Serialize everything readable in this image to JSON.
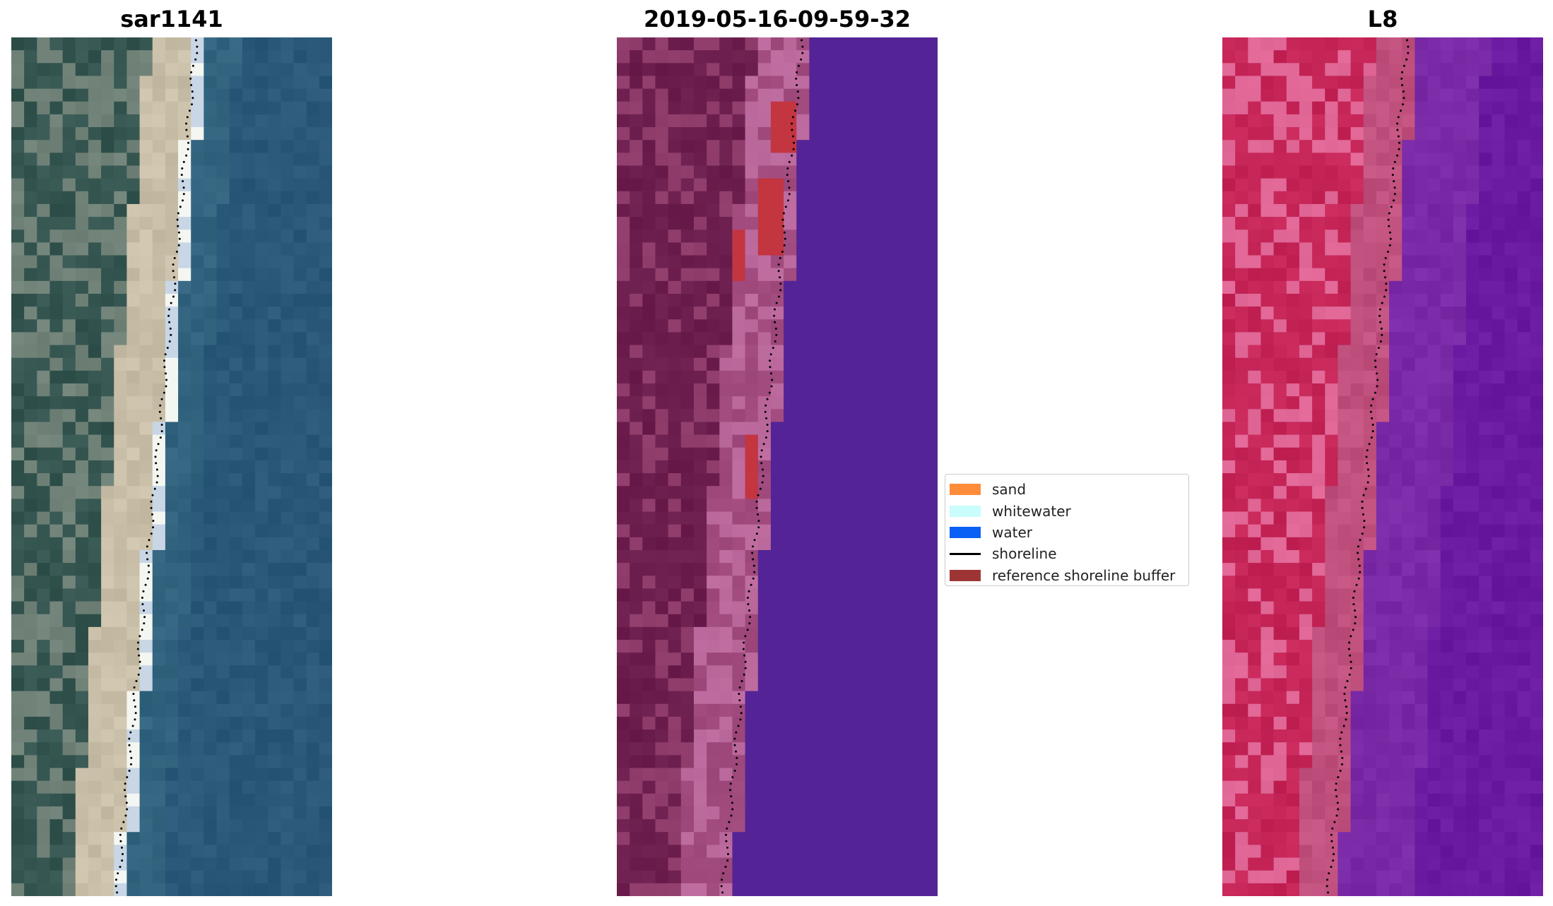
{
  "panels": [
    {
      "title": "sar1141",
      "kind": "rgb",
      "colors": {
        "inland": "#3a5a55",
        "inland_light": "#687a70",
        "sand": "#c9bfa8",
        "wet": "#c8d6e6",
        "white": "#f4f6f2",
        "water": "#2a5878",
        "water_light": "#33647f"
      }
    },
    {
      "title": "2019-05-16-09-59-32",
      "kind": "classified",
      "colors": {
        "inland": "#6e2150",
        "inland_light": "#8a3766",
        "sand": "#a34d80",
        "sand_light": "#b8669a",
        "buffer": "#c3353f",
        "water": "#542497"
      }
    },
    {
      "title": "L8",
      "kind": "falsecolor",
      "colors": {
        "inland": "#c8285a",
        "inland_light": "#d85f8e",
        "sand": "#c0507e",
        "water": "#7a2aa6",
        "water_dark": "#6a1aa0"
      }
    }
  ],
  "legend": {
    "items": [
      {
        "label": "sand",
        "type": "patch",
        "color": "#ff8c3a"
      },
      {
        "label": "whitewater",
        "type": "patch",
        "color": "#c9fdfb"
      },
      {
        "label": "water",
        "type": "patch",
        "color": "#0a5ff5"
      },
      {
        "label": "shoreline",
        "type": "line",
        "color": "#000000"
      },
      {
        "label": "reference shoreline buffer",
        "type": "patch",
        "color": "#9e3535"
      }
    ]
  }
}
